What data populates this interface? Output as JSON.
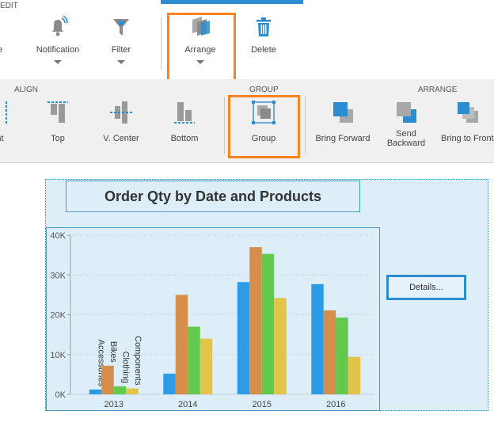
{
  "ribbon_top": {
    "section_label": "EDIT",
    "buttons": [
      {
        "label": "Notification"
      },
      {
        "label": "Filter"
      },
      {
        "label": "Arrange"
      },
      {
        "label": "Delete"
      }
    ],
    "partial_label_left": "e"
  },
  "ribbon_bottom": {
    "groups": {
      "align": "ALIGN",
      "group": "GROUP",
      "arrange": "ARRANGE"
    },
    "buttons": {
      "partial_left": "nt",
      "top": "Top",
      "v_center": "V. Center",
      "bottom": "Bottom",
      "group": "Group",
      "bring_forward": "Bring Forward",
      "send_backward_1": "Send",
      "send_backward_2": "Backward",
      "bring_to_front": "Bring to Front"
    }
  },
  "details_button": {
    "label": "Details..."
  },
  "colors": {
    "accent": "#2b8ccf",
    "highlight": "#f7841f"
  },
  "chart_data": {
    "type": "bar",
    "title": "Order Qty by Date and Products",
    "categories": [
      "2013",
      "2014",
      "2015",
      "2016"
    ],
    "series": [
      {
        "name": "Accessories",
        "color": "#2d9be6",
        "values": [
          1200,
          5200,
          28200,
          27700
        ]
      },
      {
        "name": "Bikes",
        "color": "#d58f4b",
        "values": [
          7200,
          25000,
          37000,
          21100
        ]
      },
      {
        "name": "Clothing",
        "color": "#62c94e",
        "values": [
          2000,
          17000,
          35300,
          19300
        ]
      },
      {
        "name": "Components",
        "color": "#e1c449",
        "values": [
          1500,
          14000,
          24200,
          9400
        ]
      }
    ],
    "yticks": [
      "0K",
      "10K",
      "20K",
      "30K",
      "40K"
    ],
    "ylim": [
      0,
      40000
    ],
    "grid": true
  }
}
